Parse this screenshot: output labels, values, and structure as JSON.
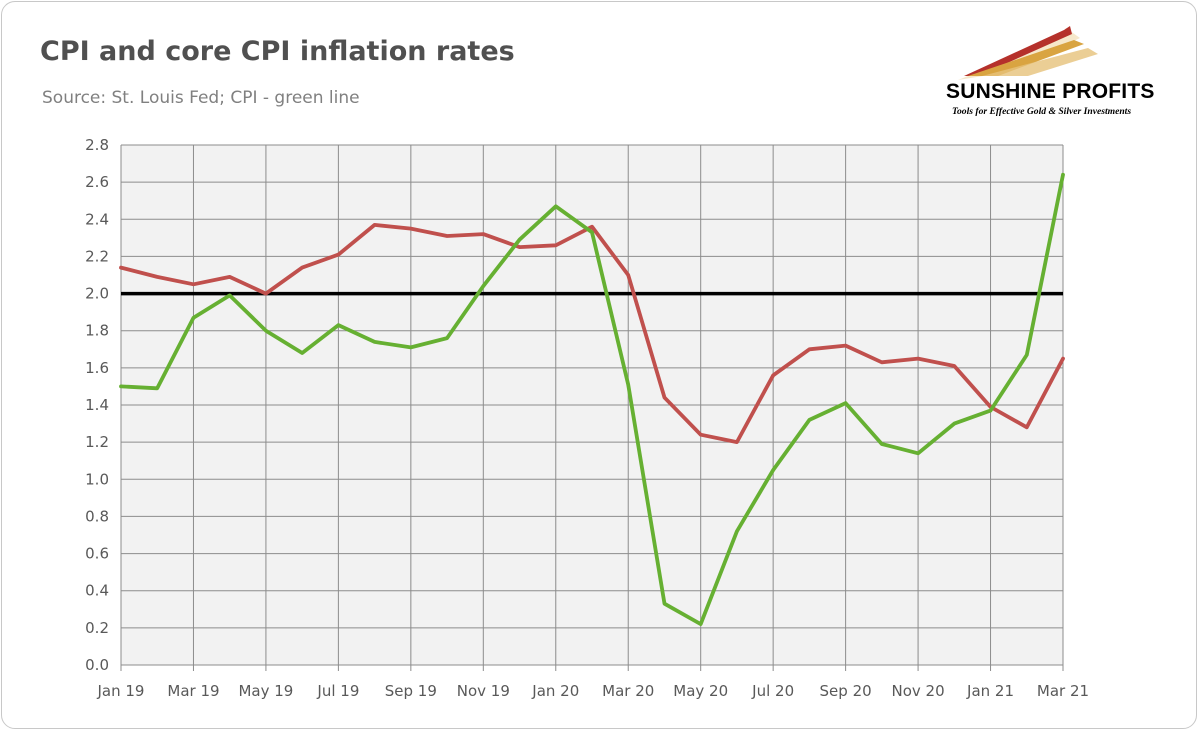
{
  "header": {
    "title": "CPI and core CPI inflation rates",
    "subtitle": "Source: St. Louis Fed; CPI - green line"
  },
  "logo": {
    "name_bold": "SUNSHINE",
    "name_rest": " PROFITS",
    "tagline": "Tools for Effective Gold & Silver Investments",
    "colors": {
      "red": "#b5312b",
      "gold": "#d9a441",
      "light": "#f0d9a8"
    }
  },
  "chart_data": {
    "type": "line",
    "title": "",
    "xlabel": "",
    "ylabel": "",
    "ylim": [
      0,
      2.8
    ],
    "y_ticks": [
      "0.0",
      "0.2",
      "0.4",
      "0.6",
      "0.8",
      "1.0",
      "1.2",
      "1.4",
      "1.6",
      "1.8",
      "2.0",
      "2.2",
      "2.4",
      "2.6",
      "2.8"
    ],
    "x": [
      "Jan 19",
      "Feb 19",
      "Mar 19",
      "Apr 19",
      "May 19",
      "Jun 19",
      "Jul 19",
      "Aug 19",
      "Sep 19",
      "Oct 19",
      "Nov 19",
      "Dec 19",
      "Jan 20",
      "Feb 20",
      "Mar 20",
      "Apr 20",
      "May 20",
      "Jun 20",
      "Jul 20",
      "Aug 20",
      "Sep 20",
      "Oct 20",
      "Nov 20",
      "Dec 20",
      "Jan 21",
      "Feb 21",
      "Mar 21"
    ],
    "x_tick_labels": [
      "Jan 19",
      "Mar 19",
      "May 19",
      "Jul 19",
      "Sep 19",
      "Nov 19",
      "Jan 20",
      "Mar 20",
      "May 20",
      "Jul 20",
      "Sep 20",
      "Nov 20",
      "Jan 21",
      "Mar 21"
    ],
    "grid": true,
    "plot_background": "#f2f2f2",
    "series": [
      {
        "color": "#c0504d",
        "values": [
          2.14,
          2.09,
          2.05,
          2.09,
          2.0,
          2.14,
          2.21,
          2.37,
          2.35,
          2.31,
          2.32,
          2.25,
          2.26,
          2.36,
          2.1,
          1.44,
          1.24,
          1.2,
          1.56,
          1.7,
          1.72,
          1.63,
          1.65,
          1.61,
          1.39,
          1.28,
          1.65
        ]
      },
      {
        "color": "#66b032",
        "values": [
          1.5,
          1.49,
          1.87,
          1.99,
          1.8,
          1.68,
          1.83,
          1.74,
          1.71,
          1.76,
          2.04,
          2.29,
          2.47,
          2.33,
          1.51,
          0.33,
          0.22,
          0.72,
          1.05,
          1.32,
          1.41,
          1.19,
          1.14,
          1.3,
          1.37,
          1.67,
          2.64
        ]
      }
    ],
    "reference_line": {
      "value": 2.0,
      "color": "#000000"
    }
  }
}
